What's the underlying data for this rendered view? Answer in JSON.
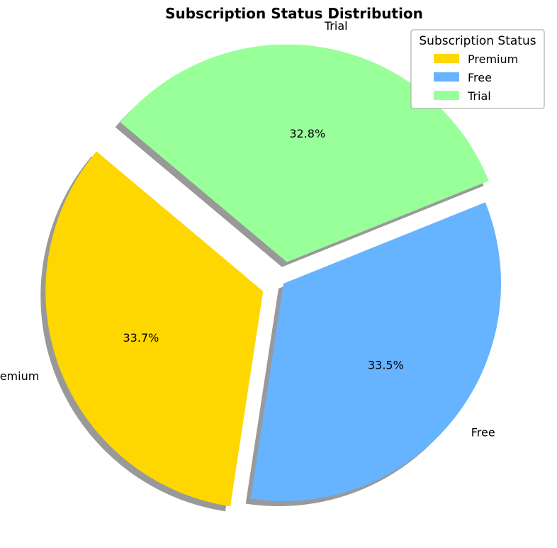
{
  "chart_data": {
    "type": "pie",
    "title": "Subscription Status Distribution",
    "categories": [
      "Premium",
      "Free",
      "Trial"
    ],
    "values": [
      33.7,
      33.5,
      32.8
    ],
    "value_labels": [
      "33.7%",
      "33.5%",
      "32.8%"
    ],
    "colors": [
      "#FFD700",
      "#66B3FF",
      "#99FF99"
    ],
    "exploded": [
      "Premium",
      "Trial"
    ],
    "shadow": true,
    "legend": {
      "title": "Subscription Status",
      "placement": "top-right",
      "entries": [
        "Premium",
        "Free",
        "Trial"
      ]
    }
  }
}
